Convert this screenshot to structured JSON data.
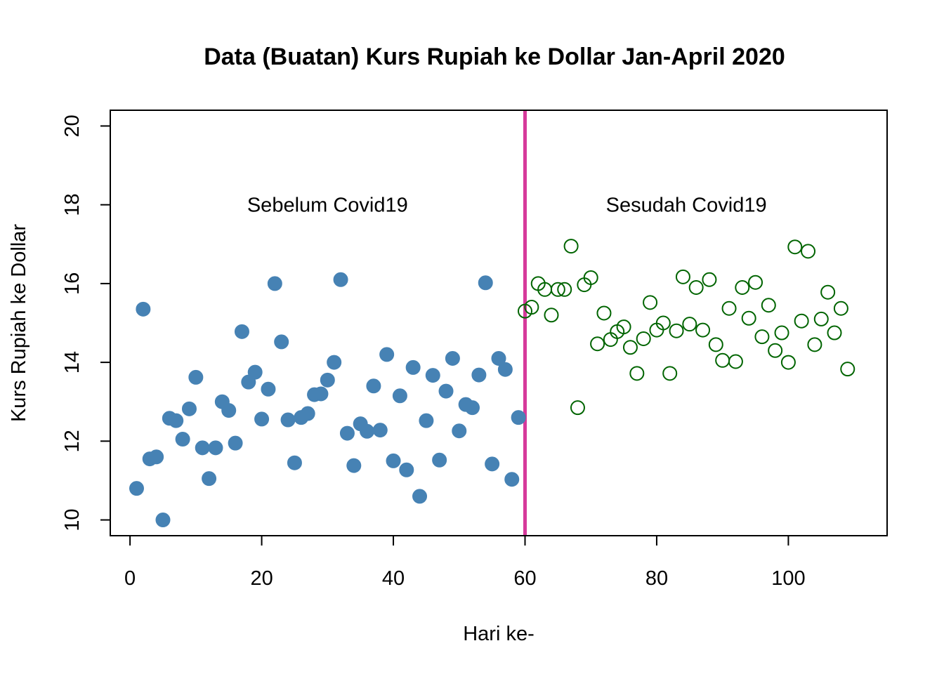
{
  "chart_data": {
    "type": "scatter",
    "title": "Data (Buatan) Kurs Rupiah ke Dollar Jan-April 2020",
    "xlabel": "Hari ke-",
    "ylabel": "Kurs Rupiah ke Dollar",
    "xlim": [
      -3,
      115
    ],
    "ylim": [
      9.6,
      20.4
    ],
    "x_ticks": [
      0,
      20,
      40,
      60,
      80,
      100
    ],
    "y_ticks": [
      10,
      12,
      14,
      16,
      18,
      20
    ],
    "grid": false,
    "legend": "none",
    "divider": {
      "x": 60,
      "color": "#D63A9B"
    },
    "annotations": [
      {
        "text": "Sebelum Covid19",
        "x": 30,
        "y": 18
      },
      {
        "text": "Sesudah Covid19",
        "x": 84.5,
        "y": 18
      }
    ],
    "series": [
      {
        "marker": "filled-circle",
        "color": "#4682B4",
        "points": [
          [
            1,
            10.8
          ],
          [
            2,
            15.35
          ],
          [
            3,
            11.55
          ],
          [
            4,
            11.6
          ],
          [
            5,
            10.0
          ],
          [
            6,
            12.58
          ],
          [
            7,
            12.52
          ],
          [
            8,
            12.05
          ],
          [
            9,
            12.82
          ],
          [
            10,
            13.62
          ],
          [
            11,
            11.83
          ],
          [
            12,
            11.05
          ],
          [
            13,
            11.83
          ],
          [
            14,
            13.0
          ],
          [
            15,
            12.78
          ],
          [
            16,
            11.95
          ],
          [
            17,
            14.78
          ],
          [
            18,
            13.5
          ],
          [
            19,
            13.75
          ],
          [
            20,
            12.56
          ],
          [
            21,
            13.32
          ],
          [
            22,
            16.0
          ],
          [
            23,
            14.52
          ],
          [
            24,
            12.54
          ],
          [
            25,
            11.45
          ],
          [
            26,
            12.6
          ],
          [
            27,
            12.7
          ],
          [
            28,
            13.18
          ],
          [
            29,
            13.2
          ],
          [
            30,
            13.55
          ],
          [
            31,
            14.0
          ],
          [
            32,
            16.1
          ],
          [
            33,
            12.2
          ],
          [
            34,
            11.38
          ],
          [
            35,
            12.44
          ],
          [
            36,
            12.25
          ],
          [
            37,
            13.4
          ],
          [
            38,
            12.28
          ],
          [
            39,
            14.2
          ],
          [
            40,
            11.5
          ],
          [
            41,
            13.15
          ],
          [
            42,
            11.27
          ],
          [
            43,
            13.87
          ],
          [
            44,
            10.6
          ],
          [
            45,
            12.52
          ],
          [
            46,
            13.67
          ],
          [
            47,
            11.52
          ],
          [
            48,
            13.27
          ],
          [
            49,
            14.1
          ],
          [
            50,
            12.26
          ],
          [
            51,
            12.93
          ],
          [
            52,
            12.85
          ],
          [
            53,
            13.68
          ],
          [
            54,
            16.02
          ],
          [
            55,
            11.42
          ],
          [
            56,
            14.1
          ],
          [
            57,
            13.82
          ],
          [
            58,
            11.03
          ],
          [
            59,
            12.6
          ]
        ]
      },
      {
        "marker": "open-circle",
        "color": "#006400",
        "points": [
          [
            60,
            15.3
          ],
          [
            61,
            15.4
          ],
          [
            62,
            16.0
          ],
          [
            63,
            15.85
          ],
          [
            64,
            15.2
          ],
          [
            65,
            15.85
          ],
          [
            66,
            15.85
          ],
          [
            67,
            16.95
          ],
          [
            68,
            12.85
          ],
          [
            69,
            15.97
          ],
          [
            70,
            16.15
          ],
          [
            71,
            14.47
          ],
          [
            72,
            15.25
          ],
          [
            73,
            14.58
          ],
          [
            74,
            14.78
          ],
          [
            75,
            14.9
          ],
          [
            76,
            14.38
          ],
          [
            77,
            13.72
          ],
          [
            78,
            14.6
          ],
          [
            79,
            15.52
          ],
          [
            80,
            14.82
          ],
          [
            81,
            15.0
          ],
          [
            82,
            13.72
          ],
          [
            83,
            14.8
          ],
          [
            84,
            16.17
          ],
          [
            85,
            14.97
          ],
          [
            86,
            15.9
          ],
          [
            87,
            14.82
          ],
          [
            88,
            16.1
          ],
          [
            89,
            14.45
          ],
          [
            90,
            14.05
          ],
          [
            91,
            15.37
          ],
          [
            92,
            14.02
          ],
          [
            93,
            15.9
          ],
          [
            94,
            15.12
          ],
          [
            95,
            16.03
          ],
          [
            96,
            14.65
          ],
          [
            97,
            15.45
          ],
          [
            98,
            14.3
          ],
          [
            99,
            14.75
          ],
          [
            100,
            14.0
          ],
          [
            101,
            16.93
          ],
          [
            102,
            15.05
          ],
          [
            103,
            16.82
          ],
          [
            104,
            14.45
          ],
          [
            105,
            15.1
          ],
          [
            106,
            15.78
          ],
          [
            107,
            14.75
          ],
          [
            108,
            15.37
          ],
          [
            109,
            13.83
          ]
        ]
      }
    ]
  }
}
